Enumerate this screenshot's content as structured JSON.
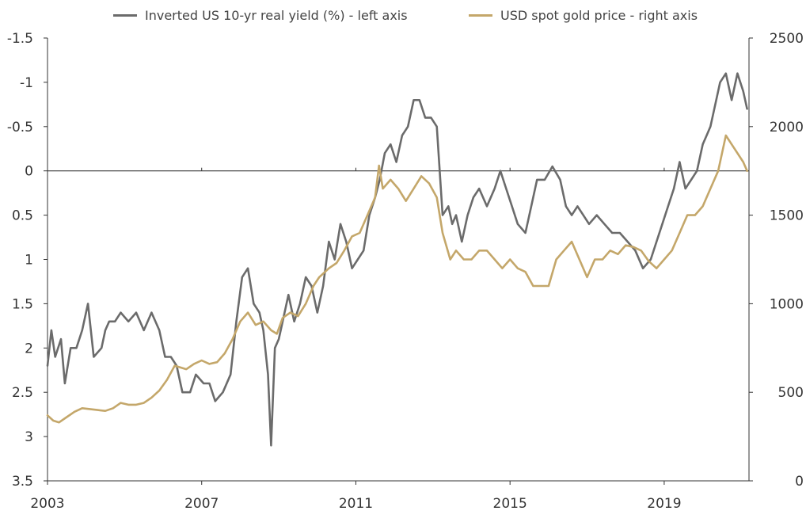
{
  "colors": {
    "yield": "#6b6b6b",
    "gold": "#c4a76a",
    "axis": "#333333",
    "zero": "#222222"
  },
  "legend": {
    "yield_label": "Inverted US 10-yr real yield (%) - left axis",
    "gold_label": "USD spot gold price - right axis"
  },
  "chart_data": {
    "type": "line",
    "title": "",
    "x_ticks": [
      "2003",
      "2007",
      "2011",
      "2015",
      "2019"
    ],
    "xlim": [
      2003,
      2021.2
    ],
    "left_axis": {
      "label": "",
      "ylim": [
        3.5,
        -1.5
      ],
      "inverted": true,
      "ticks": [
        "-1.5",
        "-1",
        "-0.5",
        "0",
        "0.5",
        "1",
        "1.5",
        "2",
        "2.5",
        "3",
        "3.5"
      ]
    },
    "right_axis": {
      "label": "",
      "ylim": [
        0,
        2500
      ],
      "ticks": [
        "2500",
        "2000",
        "1500",
        "1000",
        "500",
        "0"
      ]
    },
    "grid": false,
    "zero_line": 0,
    "legend_position": "top",
    "series": [
      {
        "name": "Inverted US 10-yr real yield (%) - left axis",
        "axis": "left",
        "x": [
          2003.0,
          2003.1,
          2003.2,
          2003.35,
          2003.45,
          2003.6,
          2003.75,
          2003.9,
          2004.05,
          2004.2,
          2004.4,
          2004.5,
          2004.6,
          2004.75,
          2004.9,
          2005.1,
          2005.3,
          2005.5,
          2005.7,
          2005.9,
          2006.05,
          2006.2,
          2006.35,
          2006.5,
          2006.7,
          2006.85,
          2007.05,
          2007.2,
          2007.35,
          2007.55,
          2007.75,
          2007.9,
          2008.05,
          2008.2,
          2008.35,
          2008.5,
          2008.6,
          2008.72,
          2008.8,
          2008.9,
          2009.0,
          2009.1,
          2009.25,
          2009.4,
          2009.55,
          2009.7,
          2009.85,
          2010.0,
          2010.15,
          2010.3,
          2010.45,
          2010.6,
          2010.75,
          2010.9,
          2011.05,
          2011.2,
          2011.35,
          2011.5,
          2011.62,
          2011.75,
          2011.9,
          2012.05,
          2012.2,
          2012.35,
          2012.5,
          2012.65,
          2012.8,
          2012.95,
          2013.1,
          2013.25,
          2013.4,
          2013.5,
          2013.6,
          2013.75,
          2013.9,
          2014.05,
          2014.2,
          2014.4,
          2014.6,
          2014.75,
          2014.9,
          2015.05,
          2015.2,
          2015.4,
          2015.55,
          2015.7,
          2015.9,
          2016.1,
          2016.3,
          2016.45,
          2016.6,
          2016.75,
          2016.9,
          2017.05,
          2017.25,
          2017.45,
          2017.65,
          2017.85,
          2018.05,
          2018.25,
          2018.45,
          2018.65,
          2018.8,
          2018.95,
          2019.1,
          2019.25,
          2019.4,
          2019.55,
          2019.7,
          2019.85,
          2020.0,
          2020.1,
          2020.2,
          2020.3,
          2020.45,
          2020.6,
          2020.75,
          2020.9,
          2021.05,
          2021.15
        ],
        "values": [
          2.2,
          1.8,
          2.1,
          1.9,
          2.4,
          2.0,
          2.0,
          1.8,
          1.5,
          2.1,
          2.0,
          1.8,
          1.7,
          1.7,
          1.6,
          1.7,
          1.6,
          1.8,
          1.6,
          1.8,
          2.1,
          2.1,
          2.2,
          2.5,
          2.5,
          2.3,
          2.4,
          2.4,
          2.6,
          2.5,
          2.3,
          1.7,
          1.2,
          1.1,
          1.5,
          1.6,
          1.8,
          2.3,
          3.1,
          2.0,
          1.9,
          1.7,
          1.4,
          1.7,
          1.5,
          1.2,
          1.3,
          1.6,
          1.3,
          0.8,
          1.0,
          0.6,
          0.8,
          1.1,
          1.0,
          0.9,
          0.5,
          0.3,
          0.1,
          -0.2,
          -0.3,
          -0.1,
          -0.4,
          -0.5,
          -0.8,
          -0.8,
          -0.6,
          -0.6,
          -0.5,
          0.5,
          0.4,
          0.6,
          0.5,
          0.8,
          0.5,
          0.3,
          0.2,
          0.4,
          0.2,
          0.0,
          0.2,
          0.4,
          0.6,
          0.7,
          0.4,
          0.1,
          0.1,
          -0.05,
          0.1,
          0.4,
          0.5,
          0.4,
          0.5,
          0.6,
          0.5,
          0.6,
          0.7,
          0.7,
          0.8,
          0.9,
          1.1,
          1.0,
          0.8,
          0.6,
          0.4,
          0.2,
          -0.1,
          0.2,
          0.1,
          0.0,
          -0.3,
          -0.4,
          -0.5,
          -0.7,
          -1.0,
          -1.1,
          -0.8,
          -1.1,
          -0.9,
          -0.7
        ]
      },
      {
        "name": "USD spot gold price - right axis",
        "axis": "right",
        "x": [
          2003.0,
          2003.15,
          2003.3,
          2003.5,
          2003.7,
          2003.9,
          2004.1,
          2004.3,
          2004.5,
          2004.7,
          2004.9,
          2005.1,
          2005.3,
          2005.5,
          2005.7,
          2005.9,
          2006.1,
          2006.3,
          2006.45,
          2006.6,
          2006.8,
          2007.0,
          2007.2,
          2007.4,
          2007.6,
          2007.8,
          2008.0,
          2008.2,
          2008.4,
          2008.6,
          2008.8,
          2008.95,
          2009.1,
          2009.3,
          2009.5,
          2009.7,
          2009.9,
          2010.05,
          2010.3,
          2010.5,
          2010.7,
          2010.9,
          2011.1,
          2011.3,
          2011.5,
          2011.6,
          2011.7,
          2011.9,
          2012.1,
          2012.3,
          2012.5,
          2012.7,
          2012.9,
          2013.1,
          2013.25,
          2013.45,
          2013.6,
          2013.8,
          2014.0,
          2014.2,
          2014.4,
          2014.6,
          2014.8,
          2015.0,
          2015.2,
          2015.4,
          2015.6,
          2015.8,
          2016.0,
          2016.2,
          2016.4,
          2016.6,
          2016.8,
          2017.0,
          2017.2,
          2017.4,
          2017.6,
          2017.8,
          2018.0,
          2018.2,
          2018.4,
          2018.6,
          2018.8,
          2019.0,
          2019.2,
          2019.4,
          2019.6,
          2019.8,
          2020.0,
          2020.2,
          2020.4,
          2020.6,
          2020.75,
          2020.9,
          2021.05,
          2021.15
        ],
        "values": [
          370,
          340,
          330,
          360,
          390,
          410,
          405,
          400,
          395,
          410,
          440,
          430,
          430,
          440,
          470,
          510,
          570,
          650,
          640,
          630,
          660,
          680,
          660,
          670,
          720,
          800,
          900,
          950,
          880,
          900,
          850,
          830,
          920,
          950,
          930,
          1000,
          1100,
          1150,
          1200,
          1230,
          1300,
          1380,
          1400,
          1500,
          1600,
          1780,
          1650,
          1700,
          1650,
          1580,
          1650,
          1720,
          1680,
          1600,
          1400,
          1250,
          1300,
          1250,
          1250,
          1300,
          1300,
          1250,
          1200,
          1250,
          1200,
          1180,
          1100,
          1100,
          1100,
          1250,
          1300,
          1350,
          1250,
          1150,
          1250,
          1250,
          1300,
          1280,
          1330,
          1320,
          1300,
          1240,
          1200,
          1250,
          1300,
          1400,
          1500,
          1500,
          1550,
          1650,
          1750,
          1950,
          1900,
          1850,
          1800,
          1750
        ]
      }
    ]
  }
}
